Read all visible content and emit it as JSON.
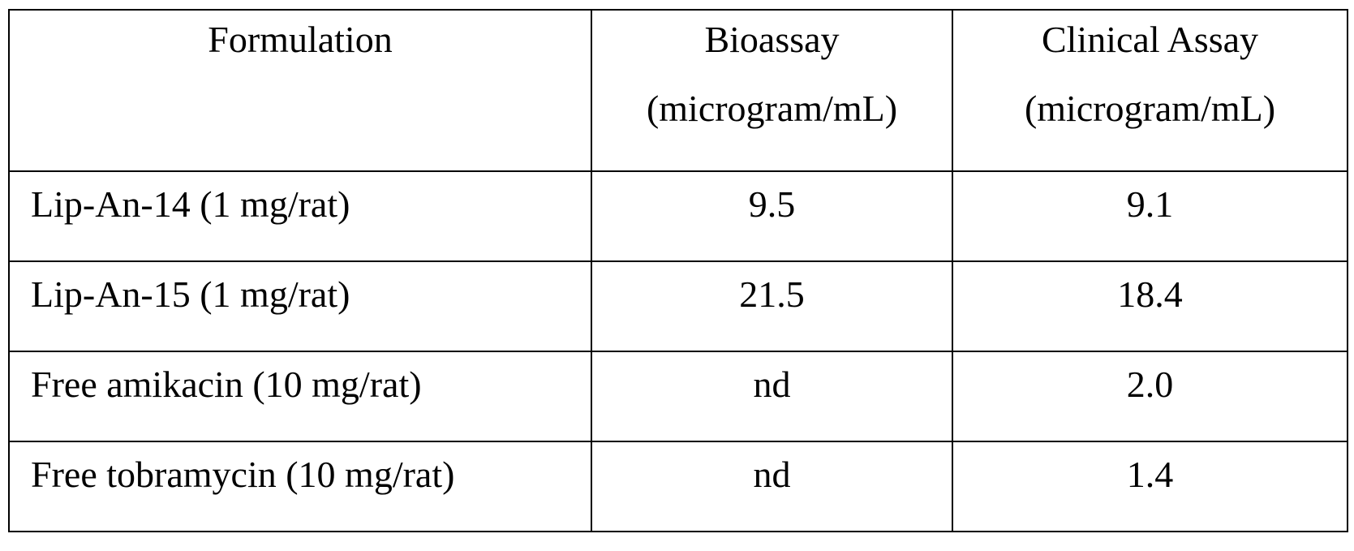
{
  "table": {
    "headers": [
      {
        "lines": [
          "Formulation"
        ]
      },
      {
        "lines": [
          "Bioassay",
          "(microgram/mL)"
        ]
      },
      {
        "lines": [
          "Clinical Assay",
          "(microgram/mL)"
        ]
      }
    ],
    "rows": [
      [
        "Lip-An-14 (1 mg/rat)",
        "9.5",
        "9.1"
      ],
      [
        "Lip-An-15 (1 mg/rat)",
        "21.5",
        "18.4"
      ],
      [
        "Free amikacin (10 mg/rat)",
        "nd",
        "2.0"
      ],
      [
        "Free tobramycin (10 mg/rat)",
        "nd",
        "1.4"
      ]
    ]
  }
}
